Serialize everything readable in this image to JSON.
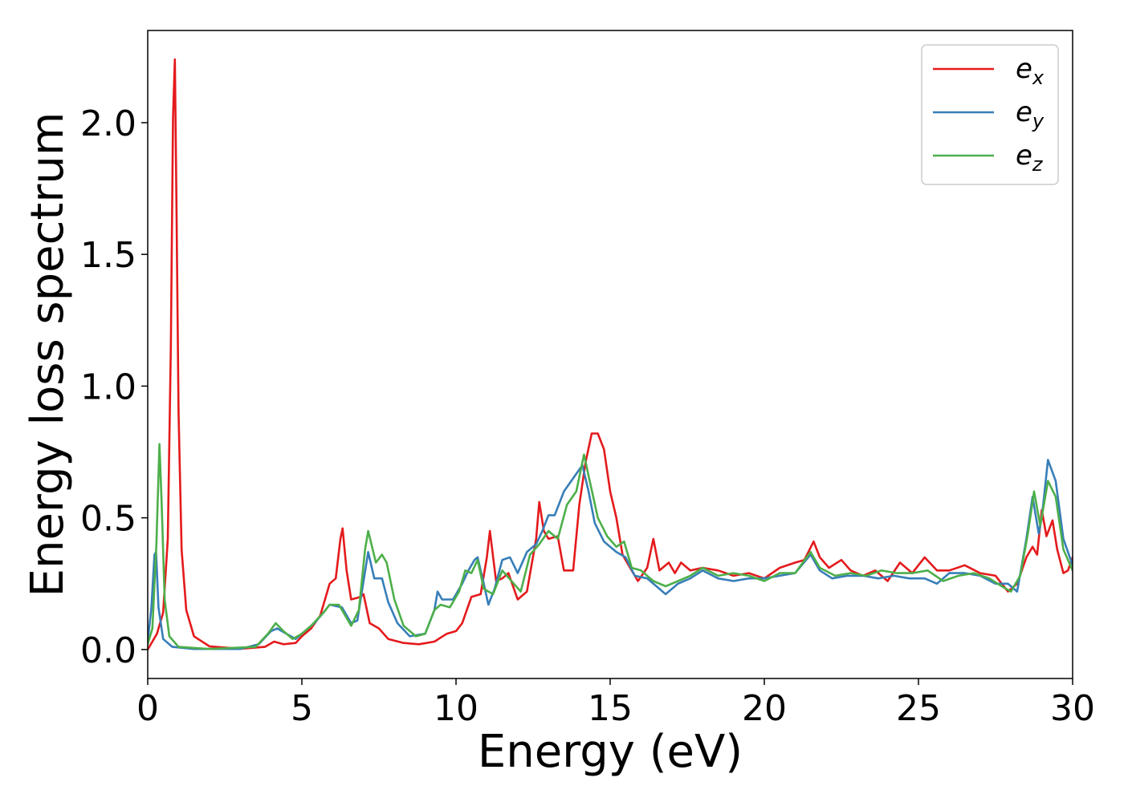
{
  "chart_data": {
    "type": "line",
    "title": "",
    "xlabel": "Energy (eV)",
    "ylabel": "Energy loss spectrum",
    "xlim": [
      0,
      30
    ],
    "ylim": [
      -0.11,
      2.35
    ],
    "xticks": [
      0,
      5,
      10,
      15,
      20,
      25,
      30
    ],
    "xtick_labels": [
      "0",
      "5",
      "10",
      "15",
      "20",
      "25",
      "30"
    ],
    "yticks": [
      0.0,
      0.5,
      1.0,
      1.5,
      2.0
    ],
    "ytick_labels": [
      "0.0",
      "0.5",
      "1.0",
      "1.5",
      "2.0"
    ],
    "grid": false,
    "legend_position": "top-right",
    "series": [
      {
        "name": "e_x",
        "legend_base": "e",
        "legend_sub": "x",
        "color": "#e41a1c",
        "points": [
          [
            0,
            0.0
          ],
          [
            0.3,
            0.06
          ],
          [
            0.5,
            0.14
          ],
          [
            0.65,
            0.42
          ],
          [
            0.75,
            1.15
          ],
          [
            0.82,
            2.02
          ],
          [
            0.88,
            2.24
          ],
          [
            0.93,
            1.72
          ],
          [
            1.0,
            0.9
          ],
          [
            1.1,
            0.38
          ],
          [
            1.25,
            0.15
          ],
          [
            1.5,
            0.05
          ],
          [
            2.0,
            0.012
          ],
          [
            3.0,
            0.003
          ],
          [
            3.8,
            0.01
          ],
          [
            4.1,
            0.03
          ],
          [
            4.4,
            0.02
          ],
          [
            4.8,
            0.025
          ],
          [
            5.0,
            0.05
          ],
          [
            5.3,
            0.08
          ],
          [
            5.6,
            0.13
          ],
          [
            5.9,
            0.25
          ],
          [
            6.1,
            0.27
          ],
          [
            6.25,
            0.42
          ],
          [
            6.32,
            0.46
          ],
          [
            6.45,
            0.3
          ],
          [
            6.6,
            0.19
          ],
          [
            6.9,
            0.2
          ],
          [
            7.0,
            0.21
          ],
          [
            7.2,
            0.1
          ],
          [
            7.5,
            0.08
          ],
          [
            7.8,
            0.04
          ],
          [
            8.3,
            0.025
          ],
          [
            8.8,
            0.02
          ],
          [
            9.3,
            0.03
          ],
          [
            9.7,
            0.06
          ],
          [
            10.0,
            0.07
          ],
          [
            10.2,
            0.1
          ],
          [
            10.5,
            0.2
          ],
          [
            10.8,
            0.21
          ],
          [
            11.0,
            0.35
          ],
          [
            11.1,
            0.45
          ],
          [
            11.3,
            0.26
          ],
          [
            11.5,
            0.27
          ],
          [
            11.7,
            0.29
          ],
          [
            12.0,
            0.19
          ],
          [
            12.3,
            0.22
          ],
          [
            12.6,
            0.42
          ],
          [
            12.7,
            0.56
          ],
          [
            12.85,
            0.45
          ],
          [
            13.0,
            0.42
          ],
          [
            13.3,
            0.43
          ],
          [
            13.5,
            0.3
          ],
          [
            13.8,
            0.3
          ],
          [
            14.0,
            0.55
          ],
          [
            14.2,
            0.71
          ],
          [
            14.4,
            0.82
          ],
          [
            14.6,
            0.82
          ],
          [
            14.8,
            0.76
          ],
          [
            15.0,
            0.6
          ],
          [
            15.2,
            0.5
          ],
          [
            15.4,
            0.36
          ],
          [
            15.6,
            0.32
          ],
          [
            15.9,
            0.26
          ],
          [
            16.2,
            0.31
          ],
          [
            16.4,
            0.42
          ],
          [
            16.6,
            0.3
          ],
          [
            16.9,
            0.33
          ],
          [
            17.1,
            0.29
          ],
          [
            17.3,
            0.33
          ],
          [
            17.6,
            0.3
          ],
          [
            18.0,
            0.31
          ],
          [
            18.5,
            0.3
          ],
          [
            19.0,
            0.28
          ],
          [
            19.5,
            0.29
          ],
          [
            20.0,
            0.27
          ],
          [
            20.5,
            0.31
          ],
          [
            21.0,
            0.33
          ],
          [
            21.3,
            0.34
          ],
          [
            21.6,
            0.41
          ],
          [
            21.8,
            0.35
          ],
          [
            22.1,
            0.31
          ],
          [
            22.5,
            0.34
          ],
          [
            22.8,
            0.3
          ],
          [
            23.2,
            0.28
          ],
          [
            23.6,
            0.3
          ],
          [
            24.0,
            0.26
          ],
          [
            24.4,
            0.33
          ],
          [
            24.8,
            0.29
          ],
          [
            25.2,
            0.35
          ],
          [
            25.6,
            0.3
          ],
          [
            26.0,
            0.3
          ],
          [
            26.5,
            0.32
          ],
          [
            27.0,
            0.29
          ],
          [
            27.5,
            0.28
          ],
          [
            27.9,
            0.22
          ],
          [
            28.2,
            0.25
          ],
          [
            28.5,
            0.35
          ],
          [
            28.7,
            0.39
          ],
          [
            28.85,
            0.36
          ],
          [
            29.0,
            0.53
          ],
          [
            29.15,
            0.43
          ],
          [
            29.35,
            0.49
          ],
          [
            29.5,
            0.38
          ],
          [
            29.7,
            0.29
          ],
          [
            29.85,
            0.3
          ],
          [
            30.0,
            0.35
          ]
        ]
      },
      {
        "name": "e_y",
        "legend_base": "e",
        "legend_sub": "y",
        "color": "#377eb8",
        "points": [
          [
            0,
            0.03
          ],
          [
            0.12,
            0.16
          ],
          [
            0.22,
            0.36
          ],
          [
            0.27,
            0.37
          ],
          [
            0.35,
            0.16
          ],
          [
            0.5,
            0.04
          ],
          [
            0.8,
            0.01
          ],
          [
            1.5,
            0.002
          ],
          [
            3.0,
            0.002
          ],
          [
            3.6,
            0.02
          ],
          [
            4.0,
            0.07
          ],
          [
            4.2,
            0.08
          ],
          [
            4.5,
            0.06
          ],
          [
            4.8,
            0.04
          ],
          [
            5.1,
            0.07
          ],
          [
            5.4,
            0.1
          ],
          [
            5.7,
            0.14
          ],
          [
            5.9,
            0.17
          ],
          [
            6.3,
            0.16
          ],
          [
            6.6,
            0.1
          ],
          [
            6.8,
            0.11
          ],
          [
            7.0,
            0.26
          ],
          [
            7.15,
            0.37
          ],
          [
            7.35,
            0.27
          ],
          [
            7.6,
            0.27
          ],
          [
            7.8,
            0.18
          ],
          [
            8.1,
            0.1
          ],
          [
            8.5,
            0.05
          ],
          [
            9.0,
            0.06
          ],
          [
            9.3,
            0.15
          ],
          [
            9.4,
            0.22
          ],
          [
            9.55,
            0.19
          ],
          [
            9.9,
            0.19
          ],
          [
            10.2,
            0.25
          ],
          [
            10.4,
            0.3
          ],
          [
            10.6,
            0.34
          ],
          [
            10.7,
            0.35
          ],
          [
            10.9,
            0.25
          ],
          [
            11.05,
            0.17
          ],
          [
            11.25,
            0.23
          ],
          [
            11.5,
            0.34
          ],
          [
            11.75,
            0.35
          ],
          [
            12.0,
            0.29
          ],
          [
            12.3,
            0.37
          ],
          [
            12.6,
            0.4
          ],
          [
            12.8,
            0.45
          ],
          [
            13.0,
            0.51
          ],
          [
            13.2,
            0.51
          ],
          [
            13.5,
            0.6
          ],
          [
            13.8,
            0.65
          ],
          [
            14.1,
            0.7
          ],
          [
            14.3,
            0.6
          ],
          [
            14.5,
            0.48
          ],
          [
            14.8,
            0.41
          ],
          [
            15.2,
            0.37
          ],
          [
            15.5,
            0.35
          ],
          [
            15.8,
            0.28
          ],
          [
            16.2,
            0.27
          ],
          [
            16.5,
            0.24
          ],
          [
            16.8,
            0.21
          ],
          [
            17.2,
            0.25
          ],
          [
            17.6,
            0.27
          ],
          [
            18.0,
            0.3
          ],
          [
            18.5,
            0.27
          ],
          [
            19.0,
            0.26
          ],
          [
            19.5,
            0.27
          ],
          [
            20.0,
            0.27
          ],
          [
            20.5,
            0.28
          ],
          [
            21.0,
            0.29
          ],
          [
            21.5,
            0.36
          ],
          [
            21.8,
            0.3
          ],
          [
            22.2,
            0.27
          ],
          [
            22.7,
            0.28
          ],
          [
            23.2,
            0.28
          ],
          [
            23.7,
            0.27
          ],
          [
            24.2,
            0.28
          ],
          [
            24.7,
            0.27
          ],
          [
            25.2,
            0.27
          ],
          [
            25.6,
            0.25
          ],
          [
            26.0,
            0.29
          ],
          [
            26.5,
            0.29
          ],
          [
            27.0,
            0.28
          ],
          [
            27.5,
            0.25
          ],
          [
            27.9,
            0.25
          ],
          [
            28.2,
            0.22
          ],
          [
            28.5,
            0.42
          ],
          [
            28.7,
            0.58
          ],
          [
            28.9,
            0.44
          ],
          [
            29.0,
            0.5
          ],
          [
            29.2,
            0.72
          ],
          [
            29.45,
            0.64
          ],
          [
            29.7,
            0.42
          ],
          [
            30.0,
            0.32
          ]
        ]
      },
      {
        "name": "e_z",
        "legend_base": "e",
        "legend_sub": "z",
        "color": "#4daf4a",
        "points": [
          [
            0,
            0.02
          ],
          [
            0.15,
            0.08
          ],
          [
            0.28,
            0.4
          ],
          [
            0.38,
            0.78
          ],
          [
            0.45,
            0.56
          ],
          [
            0.55,
            0.19
          ],
          [
            0.7,
            0.05
          ],
          [
            1.0,
            0.01
          ],
          [
            2.0,
            0.002
          ],
          [
            3.5,
            0.01
          ],
          [
            3.9,
            0.06
          ],
          [
            4.15,
            0.1
          ],
          [
            4.4,
            0.07
          ],
          [
            4.7,
            0.04
          ],
          [
            5.0,
            0.06
          ],
          [
            5.3,
            0.09
          ],
          [
            5.7,
            0.14
          ],
          [
            5.9,
            0.17
          ],
          [
            6.2,
            0.17
          ],
          [
            6.6,
            0.09
          ],
          [
            6.85,
            0.15
          ],
          [
            7.05,
            0.38
          ],
          [
            7.15,
            0.45
          ],
          [
            7.4,
            0.33
          ],
          [
            7.6,
            0.36
          ],
          [
            7.75,
            0.33
          ],
          [
            8.0,
            0.19
          ],
          [
            8.3,
            0.09
          ],
          [
            8.7,
            0.05
          ],
          [
            9.0,
            0.06
          ],
          [
            9.3,
            0.15
          ],
          [
            9.5,
            0.17
          ],
          [
            9.8,
            0.16
          ],
          [
            10.1,
            0.22
          ],
          [
            10.3,
            0.3
          ],
          [
            10.5,
            0.29
          ],
          [
            10.7,
            0.34
          ],
          [
            10.9,
            0.23
          ],
          [
            11.2,
            0.21
          ],
          [
            11.5,
            0.3
          ],
          [
            11.8,
            0.26
          ],
          [
            12.1,
            0.22
          ],
          [
            12.4,
            0.36
          ],
          [
            12.7,
            0.4
          ],
          [
            13.0,
            0.45
          ],
          [
            13.3,
            0.42
          ],
          [
            13.6,
            0.55
          ],
          [
            13.9,
            0.6
          ],
          [
            14.15,
            0.74
          ],
          [
            14.3,
            0.66
          ],
          [
            14.6,
            0.5
          ],
          [
            14.9,
            0.43
          ],
          [
            15.2,
            0.39
          ],
          [
            15.45,
            0.41
          ],
          [
            15.7,
            0.31
          ],
          [
            16.0,
            0.3
          ],
          [
            16.4,
            0.26
          ],
          [
            16.8,
            0.24
          ],
          [
            17.2,
            0.26
          ],
          [
            17.6,
            0.28
          ],
          [
            18.0,
            0.31
          ],
          [
            18.5,
            0.28
          ],
          [
            19.0,
            0.29
          ],
          [
            19.5,
            0.28
          ],
          [
            20.0,
            0.26
          ],
          [
            20.5,
            0.29
          ],
          [
            21.0,
            0.29
          ],
          [
            21.5,
            0.37
          ],
          [
            21.8,
            0.31
          ],
          [
            22.3,
            0.28
          ],
          [
            22.8,
            0.29
          ],
          [
            23.3,
            0.28
          ],
          [
            23.8,
            0.3
          ],
          [
            24.3,
            0.29
          ],
          [
            24.8,
            0.29
          ],
          [
            25.3,
            0.3
          ],
          [
            25.8,
            0.26
          ],
          [
            26.3,
            0.28
          ],
          [
            26.8,
            0.29
          ],
          [
            27.3,
            0.27
          ],
          [
            27.7,
            0.24
          ],
          [
            28.0,
            0.22
          ],
          [
            28.3,
            0.28
          ],
          [
            28.55,
            0.44
          ],
          [
            28.75,
            0.6
          ],
          [
            28.95,
            0.47
          ],
          [
            29.2,
            0.64
          ],
          [
            29.45,
            0.58
          ],
          [
            29.7,
            0.38
          ],
          [
            30.0,
            0.3
          ]
        ]
      }
    ]
  }
}
